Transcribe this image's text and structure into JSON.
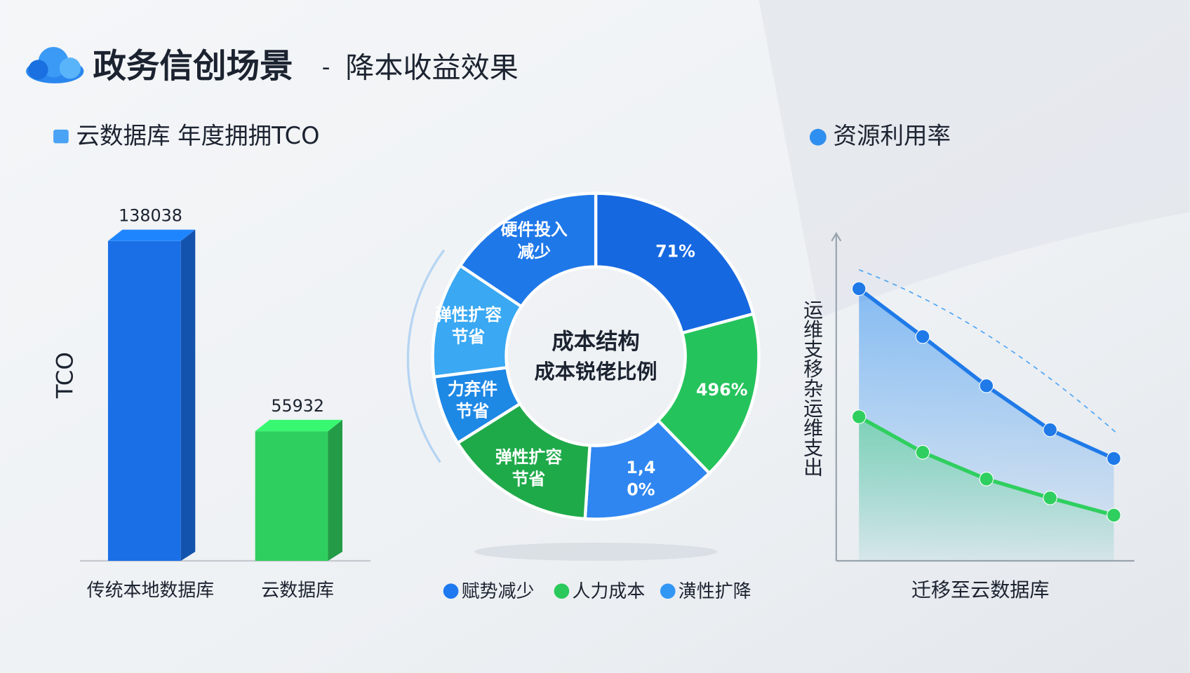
{
  "header": {
    "title": "政务信创场景",
    "separator": "-",
    "subtitle": "降本收益效果"
  },
  "chart_data": [
    {
      "type": "bar",
      "title": "云数据库 年度拥拥TCO",
      "y_label": "TCO",
      "categories": [
        "传统本地数据库",
        "云数据库"
      ],
      "values": [
        138038,
        55932
      ],
      "colors": [
        "#1a6fe6",
        "#2fcf5f"
      ]
    },
    {
      "type": "pie",
      "title": "成本结构",
      "subtitle": "成本锐佬比例",
      "categories": [
        "71%",
        "496%",
        "1,40%",
        "弹性扩容节省",
        "力弃件节省",
        "弹性扩容节省",
        "硬件投入减少"
      ],
      "values": [
        20.8,
        16.9,
        13.3,
        15,
        6.9,
        11.4,
        15.6
      ],
      "colors": [
        "#1668e0",
        "#25c35c",
        "#2f86f0",
        "#1faa4a",
        "#1e88e5",
        "#3aa8f2",
        "#1f78e8"
      ],
      "legend": [
        {
          "name": "赋势减少",
          "color": "#1e78f0"
        },
        {
          "name": "人力成本",
          "color": "#2bc95c"
        },
        {
          "name": "潢性扩降",
          "color": "#3296f5"
        }
      ]
    },
    {
      "type": "line",
      "title": "资源利用率",
      "y_label": "运维支移杂运维支出",
      "x_label": "迁移至云数据库",
      "categories": [
        null,
        null,
        null,
        null,
        null
      ],
      "ylim": [
        0,
        100
      ],
      "series": [
        {
          "color": "#1f7ae8",
          "values": [
            83.5,
            68.8,
            53.7,
            40.2,
            31.4
          ]
        },
        {
          "color": "#2fcf5f",
          "values": [
            44.2,
            33.3,
            25.1,
            19.3,
            14.0
          ]
        }
      ]
    }
  ]
}
